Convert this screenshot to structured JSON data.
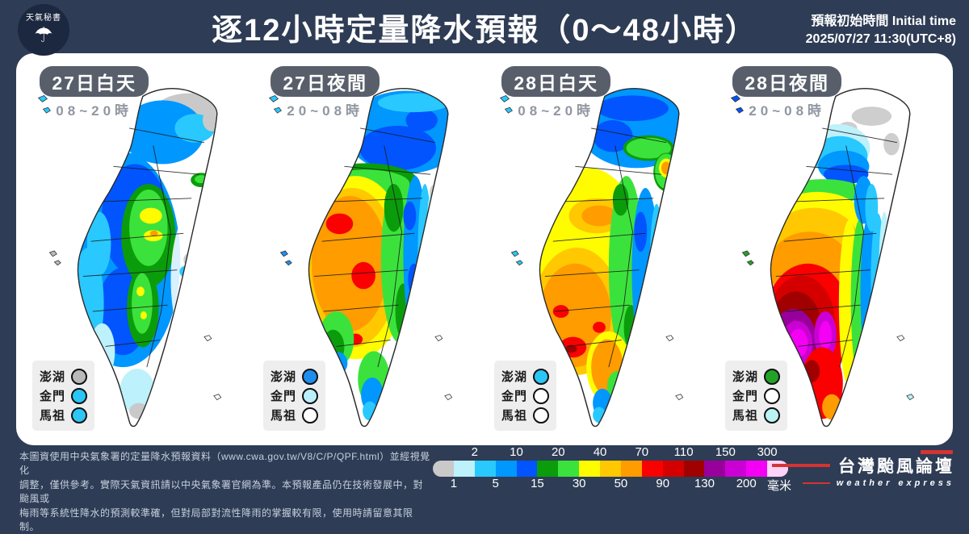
{
  "header": {
    "logo": {
      "text": "天氣秘書",
      "umbrella_glyph": "☂"
    },
    "title": "逐12小時定量降水預報（0～48小時）",
    "init_label": "預報初始時間 Initial time",
    "init_value": "2025/07/27  11:30(UTC+8)"
  },
  "panels": [
    {
      "title": "27日白天",
      "time": "08~20時",
      "islands": [
        {
          "label": "澎湖",
          "color": "#b9b9b9"
        },
        {
          "label": "金門",
          "color": "#2bc6f5"
        },
        {
          "label": "馬祖",
          "color": "#2bc6f5"
        }
      ]
    },
    {
      "title": "27日夜間",
      "time": "20~08時",
      "islands": [
        {
          "label": "澎湖",
          "color": "#1d8ef0"
        },
        {
          "label": "金門",
          "color": "#baeff9"
        },
        {
          "label": "馬祖",
          "color": "#ffffff"
        }
      ]
    },
    {
      "title": "28日白天",
      "time": "08~20時",
      "islands": [
        {
          "label": "澎湖",
          "color": "#2bc6f5"
        },
        {
          "label": "金門",
          "color": "#ffffff"
        },
        {
          "label": "馬祖",
          "color": "#ffffff"
        }
      ]
    },
    {
      "title": "28日夜間",
      "time": "20~08時",
      "islands": [
        {
          "label": "澎湖",
          "color": "#22a327"
        },
        {
          "label": "金門",
          "color": "#ffffff"
        },
        {
          "label": "馬祖",
          "color": "#b9f3f3"
        }
      ]
    }
  ],
  "footer": {
    "disclaimer_lines": [
      "本圖資使用中央氣象署的定量降水預報資料（www.cwa.gov.tw/V8/C/P/QPF.html）並經視覺化",
      "調整，僅供參考。實際天氣資訊請以中央氣象署官網為準。本預報產品仍在技術發展中，對颱風或",
      "梅雨等系統性降水的預測較準確，但對局部對流性降雨的掌握較有限，使用時請留意其限制。"
    ],
    "scale": {
      "unit": "毫米",
      "boundaries": [
        1,
        2,
        5,
        10,
        15,
        20,
        30,
        40,
        50,
        70,
        90,
        110,
        130,
        150,
        200,
        300
      ],
      "top_labels": [
        2,
        10,
        20,
        40,
        70,
        110,
        150,
        300
      ],
      "bottom_labels": [
        1,
        5,
        15,
        30,
        50,
        90,
        130,
        200
      ],
      "colors": [
        "#c9c9c9",
        "#bdf1fb",
        "#29c8ff",
        "#0097ff",
        "#0254ff",
        "#0b9c0b",
        "#3ce23c",
        "#fffc00",
        "#ffc800",
        "#ff9c00",
        "#fa0000",
        "#d40000",
        "#a00000",
        "#98009b",
        "#cb00d4",
        "#f400f4",
        "#ffd2fa"
      ]
    },
    "brand": {
      "name": "台灣颱風論壇",
      "sub": "weather express"
    }
  }
}
